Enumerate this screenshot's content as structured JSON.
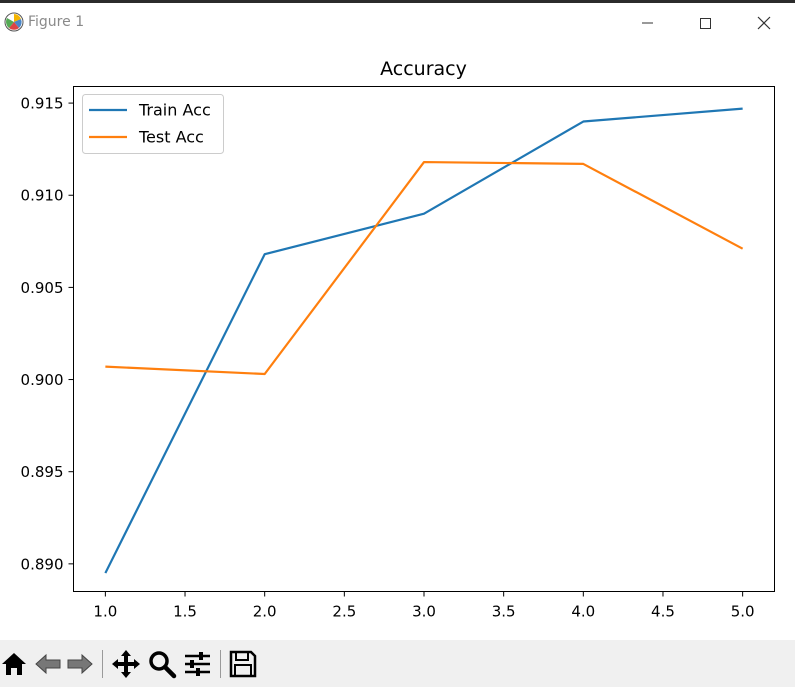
{
  "window": {
    "title": "Figure 1",
    "icons": {
      "app": "matplotlib-icon",
      "minimize": "minimize-icon",
      "maximize": "maximize-icon",
      "close": "close-icon"
    }
  },
  "toolbar": {
    "buttons": [
      {
        "name": "home",
        "icon": "home-icon"
      },
      {
        "name": "back",
        "icon": "back-arrow-icon"
      },
      {
        "name": "forward",
        "icon": "forward-arrow-icon"
      },
      {
        "name": "pan",
        "icon": "pan-move-icon"
      },
      {
        "name": "zoom",
        "icon": "zoom-magnifier-icon"
      },
      {
        "name": "configure-subplots",
        "icon": "sliders-icon"
      },
      {
        "name": "save",
        "icon": "save-floppy-icon"
      }
    ]
  },
  "chart_data": {
    "type": "line",
    "title": "Accuracy",
    "xlabel": "",
    "ylabel": "",
    "x": [
      1.0,
      2.0,
      3.0,
      4.0,
      5.0
    ],
    "series": [
      {
        "name": "Train Acc",
        "color": "#1f77b4",
        "values": [
          0.8895,
          0.9068,
          0.909,
          0.914,
          0.9147
        ]
      },
      {
        "name": "Test Acc",
        "color": "#ff7f0e",
        "values": [
          0.9007,
          0.9003,
          0.9118,
          0.9117,
          0.9071
        ]
      }
    ],
    "xticks": [
      "1.0",
      "1.5",
      "2.0",
      "2.5",
      "3.0",
      "3.5",
      "4.0",
      "4.5",
      "5.0"
    ],
    "yticks": [
      "0.890",
      "0.895",
      "0.900",
      "0.905",
      "0.910",
      "0.915"
    ],
    "xlim": [
      0.8,
      5.2
    ],
    "ylim": [
      0.8885,
      0.9159
    ],
    "grid": false,
    "legend": "upper left"
  }
}
